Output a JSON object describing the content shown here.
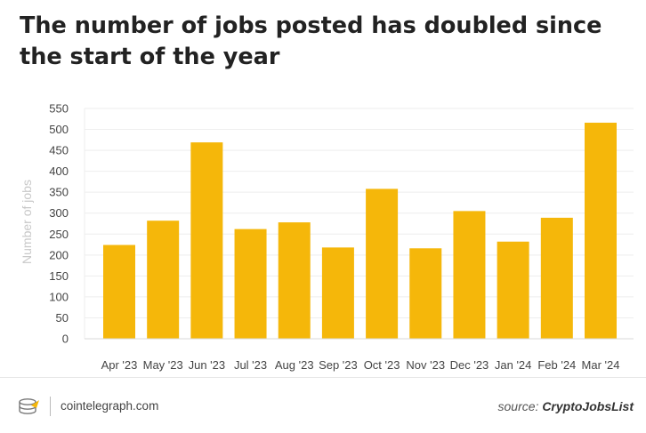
{
  "chart_data": {
    "type": "bar",
    "title": "The number of jobs posted has doubled since the start of the year",
    "ylabel": "Number of jobs",
    "xlabel": "",
    "categories": [
      "Apr '23",
      "May '23",
      "Jun '23",
      "Jul '23",
      "Aug '23",
      "Sep '23",
      "Oct '23",
      "Nov '23",
      "Dec '23",
      "Jan '24",
      "Feb '24",
      "Mar '24"
    ],
    "values": [
      224,
      282,
      469,
      262,
      278,
      218,
      358,
      216,
      305,
      232,
      289,
      516
    ],
    "ylim": [
      0,
      550
    ],
    "yticks": [
      0,
      50,
      100,
      150,
      200,
      250,
      300,
      350,
      400,
      450,
      500,
      550
    ],
    "grid": true,
    "bar_color": "#f5b70a"
  },
  "footer": {
    "brand": "cointelegraph.com",
    "source_prefix": "source: ",
    "source_name": "CryptoJobsList",
    "logo_icon": "cointelegraph-logo-icon"
  }
}
